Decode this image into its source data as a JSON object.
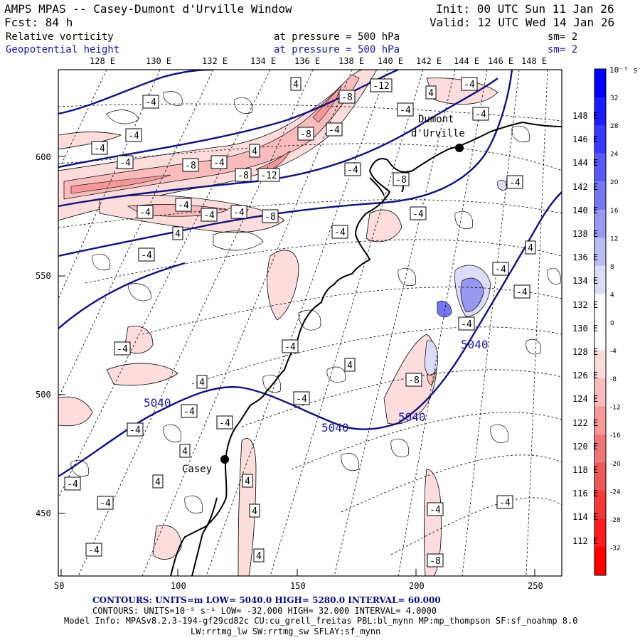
{
  "header": {
    "title": "AMPS MPAS -- Casey-Dumont d'Urville Window",
    "init": "Init: 00 UTC Sun 11 Jan 26",
    "fcst": "Fcst:   84 h",
    "valid": "Valid: 12 UTC Wed 14 Jan 26",
    "field1": "Relative vorticity",
    "field1_level": "at pressure =  500 hPa",
    "field1_sm": "sm= 2",
    "field2": "Geopotential height",
    "field2_level": "at pressure =  500 hPa",
    "field2_sm": "sm= 2"
  },
  "lon_ticks": [
    "128 E",
    "130 E",
    "132 E",
    "134 E",
    "136 E",
    "138 E",
    "140 E",
    "142 E",
    "144 E",
    "146 E",
    "148 E"
  ],
  "lat_ticks_right": [
    "148 E",
    "146 E",
    "144 E",
    "142 E",
    "140 E",
    "138 E",
    "136 E",
    "134 E",
    "132 E",
    "130 E",
    "128 E",
    "126 E",
    "124 E",
    "122 E",
    "120 E",
    "118 E",
    "116 E",
    "114 E",
    "112 E"
  ],
  "x_axis": [
    "50",
    "100",
    "150",
    "200",
    "250"
  ],
  "y_axis": [
    "600",
    "550",
    "500",
    "450"
  ],
  "places": {
    "dumont1": "Dumont",
    "dumont2": "d'Urville",
    "casey": "Casey"
  },
  "height_labels": [
    "5040",
    "5040",
    "5040",
    "5040"
  ],
  "colorbar": {
    "units": "10⁻⁵ s⁻¹",
    "labels": [
      "32",
      "28",
      "24",
      "20",
      "16",
      "12",
      "8",
      "4",
      "0",
      "-4",
      "-8",
      "-12",
      "-16",
      "-20",
      "-24",
      "-28",
      "-32"
    ],
    "colors": [
      "#0000ff",
      "#1c1cff",
      "#3a3aff",
      "#5858f2",
      "#7676ee",
      "#9898f0",
      "#bcbcf4",
      "#dcdcf8",
      "#ffffff",
      "#ffffff",
      "#fcdcdc",
      "#f8bcbc",
      "#f49898",
      "#f07676",
      "#ee5858",
      "#f23a3a",
      "#ff1c1c",
      "#ff0000"
    ]
  },
  "footer": {
    "line1": "CONTOURS:  UNITS=m  LOW=  5040.0          HIGH=  5280.0          INTERVAL=   60.000",
    "line2": "CONTOURS:  UNITS=10⁻⁵ s⁻¹  LOW= -32.000       HIGH=  32.000       INTERVAL=   4.0000",
    "line3": "Model Info: MPASv8.2.3-194-gf29cd82c CU:cu_grell_freitas PBL:bl_mynn MP:mp_thompson SF:sf_noahmp 8.0",
    "line4": "LW:rrtmg_lw SW:rrtmg_sw SFLAY:sf_mynn"
  },
  "vort_labels": [
    "-4",
    "-4",
    "-4",
    "-4",
    "-8",
    "-4",
    "4",
    "-8",
    "-4",
    "4",
    "-8",
    "-12",
    "4",
    "-4",
    "-4",
    "-4",
    "-4",
    "-4",
    "-4",
    "-4",
    "4",
    "-8",
    "-8",
    "-12",
    "-4",
    "-4",
    "-8",
    "-4",
    "-4",
    "4",
    "-4",
    "-4",
    "-4",
    "-4",
    "-4",
    "4",
    "-8",
    "4",
    "-4",
    "-4",
    "-4",
    "-4",
    "4",
    "-4",
    "4",
    "4",
    "-4",
    "-4",
    "-4",
    "4",
    "-4",
    "4",
    "-8",
    "-4",
    "-4",
    "-4",
    "-4",
    "-4",
    "4",
    "-4",
    "-8",
    "-4",
    "-4",
    "-8",
    "-4"
  ]
}
